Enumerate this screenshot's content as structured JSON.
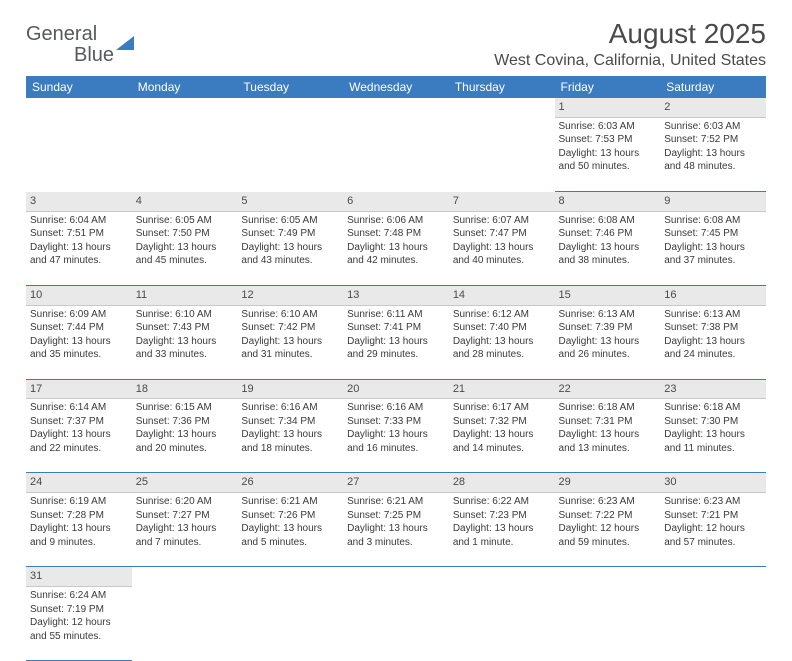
{
  "logo": {
    "word1": "General",
    "word2": "Blue"
  },
  "title": "August 2025",
  "location": "West Covina, California, United States",
  "colors": {
    "header_bg": "#3b7bbf",
    "header_text": "#ffffff",
    "daynum_bg": "#e9e9e9",
    "text": "#3a3a3a",
    "divider": "#3b7bbf"
  },
  "day_names": [
    "Sunday",
    "Monday",
    "Tuesday",
    "Wednesday",
    "Thursday",
    "Friday",
    "Saturday"
  ],
  "weeks": [
    [
      null,
      null,
      null,
      null,
      null,
      {
        "n": "1",
        "sunrise": "Sunrise: 6:03 AM",
        "sunset": "Sunset: 7:53 PM",
        "daylight": "Daylight: 13 hours and 50 minutes."
      },
      {
        "n": "2",
        "sunrise": "Sunrise: 6:03 AM",
        "sunset": "Sunset: 7:52 PM",
        "daylight": "Daylight: 13 hours and 48 minutes."
      }
    ],
    [
      {
        "n": "3",
        "sunrise": "Sunrise: 6:04 AM",
        "sunset": "Sunset: 7:51 PM",
        "daylight": "Daylight: 13 hours and 47 minutes."
      },
      {
        "n": "4",
        "sunrise": "Sunrise: 6:05 AM",
        "sunset": "Sunset: 7:50 PM",
        "daylight": "Daylight: 13 hours and 45 minutes."
      },
      {
        "n": "5",
        "sunrise": "Sunrise: 6:05 AM",
        "sunset": "Sunset: 7:49 PM",
        "daylight": "Daylight: 13 hours and 43 minutes."
      },
      {
        "n": "6",
        "sunrise": "Sunrise: 6:06 AM",
        "sunset": "Sunset: 7:48 PM",
        "daylight": "Daylight: 13 hours and 42 minutes."
      },
      {
        "n": "7",
        "sunrise": "Sunrise: 6:07 AM",
        "sunset": "Sunset: 7:47 PM",
        "daylight": "Daylight: 13 hours and 40 minutes."
      },
      {
        "n": "8",
        "sunrise": "Sunrise: 6:08 AM",
        "sunset": "Sunset: 7:46 PM",
        "daylight": "Daylight: 13 hours and 38 minutes."
      },
      {
        "n": "9",
        "sunrise": "Sunrise: 6:08 AM",
        "sunset": "Sunset: 7:45 PM",
        "daylight": "Daylight: 13 hours and 37 minutes."
      }
    ],
    [
      {
        "n": "10",
        "sunrise": "Sunrise: 6:09 AM",
        "sunset": "Sunset: 7:44 PM",
        "daylight": "Daylight: 13 hours and 35 minutes."
      },
      {
        "n": "11",
        "sunrise": "Sunrise: 6:10 AM",
        "sunset": "Sunset: 7:43 PM",
        "daylight": "Daylight: 13 hours and 33 minutes."
      },
      {
        "n": "12",
        "sunrise": "Sunrise: 6:10 AM",
        "sunset": "Sunset: 7:42 PM",
        "daylight": "Daylight: 13 hours and 31 minutes."
      },
      {
        "n": "13",
        "sunrise": "Sunrise: 6:11 AM",
        "sunset": "Sunset: 7:41 PM",
        "daylight": "Daylight: 13 hours and 29 minutes."
      },
      {
        "n": "14",
        "sunrise": "Sunrise: 6:12 AM",
        "sunset": "Sunset: 7:40 PM",
        "daylight": "Daylight: 13 hours and 28 minutes."
      },
      {
        "n": "15",
        "sunrise": "Sunrise: 6:13 AM",
        "sunset": "Sunset: 7:39 PM",
        "daylight": "Daylight: 13 hours and 26 minutes."
      },
      {
        "n": "16",
        "sunrise": "Sunrise: 6:13 AM",
        "sunset": "Sunset: 7:38 PM",
        "daylight": "Daylight: 13 hours and 24 minutes."
      }
    ],
    [
      {
        "n": "17",
        "sunrise": "Sunrise: 6:14 AM",
        "sunset": "Sunset: 7:37 PM",
        "daylight": "Daylight: 13 hours and 22 minutes."
      },
      {
        "n": "18",
        "sunrise": "Sunrise: 6:15 AM",
        "sunset": "Sunset: 7:36 PM",
        "daylight": "Daylight: 13 hours and 20 minutes."
      },
      {
        "n": "19",
        "sunrise": "Sunrise: 6:16 AM",
        "sunset": "Sunset: 7:34 PM",
        "daylight": "Daylight: 13 hours and 18 minutes."
      },
      {
        "n": "20",
        "sunrise": "Sunrise: 6:16 AM",
        "sunset": "Sunset: 7:33 PM",
        "daylight": "Daylight: 13 hours and 16 minutes."
      },
      {
        "n": "21",
        "sunrise": "Sunrise: 6:17 AM",
        "sunset": "Sunset: 7:32 PM",
        "daylight": "Daylight: 13 hours and 14 minutes."
      },
      {
        "n": "22",
        "sunrise": "Sunrise: 6:18 AM",
        "sunset": "Sunset: 7:31 PM",
        "daylight": "Daylight: 13 hours and 13 minutes."
      },
      {
        "n": "23",
        "sunrise": "Sunrise: 6:18 AM",
        "sunset": "Sunset: 7:30 PM",
        "daylight": "Daylight: 13 hours and 11 minutes."
      }
    ],
    [
      {
        "n": "24",
        "sunrise": "Sunrise: 6:19 AM",
        "sunset": "Sunset: 7:28 PM",
        "daylight": "Daylight: 13 hours and 9 minutes."
      },
      {
        "n": "25",
        "sunrise": "Sunrise: 6:20 AM",
        "sunset": "Sunset: 7:27 PM",
        "daylight": "Daylight: 13 hours and 7 minutes."
      },
      {
        "n": "26",
        "sunrise": "Sunrise: 6:21 AM",
        "sunset": "Sunset: 7:26 PM",
        "daylight": "Daylight: 13 hours and 5 minutes."
      },
      {
        "n": "27",
        "sunrise": "Sunrise: 6:21 AM",
        "sunset": "Sunset: 7:25 PM",
        "daylight": "Daylight: 13 hours and 3 minutes."
      },
      {
        "n": "28",
        "sunrise": "Sunrise: 6:22 AM",
        "sunset": "Sunset: 7:23 PM",
        "daylight": "Daylight: 13 hours and 1 minute."
      },
      {
        "n": "29",
        "sunrise": "Sunrise: 6:23 AM",
        "sunset": "Sunset: 7:22 PM",
        "daylight": "Daylight: 12 hours and 59 minutes."
      },
      {
        "n": "30",
        "sunrise": "Sunrise: 6:23 AM",
        "sunset": "Sunset: 7:21 PM",
        "daylight": "Daylight: 12 hours and 57 minutes."
      }
    ],
    [
      {
        "n": "31",
        "sunrise": "Sunrise: 6:24 AM",
        "sunset": "Sunset: 7:19 PM",
        "daylight": "Daylight: 12 hours and 55 minutes."
      },
      null,
      null,
      null,
      null,
      null,
      null
    ]
  ]
}
